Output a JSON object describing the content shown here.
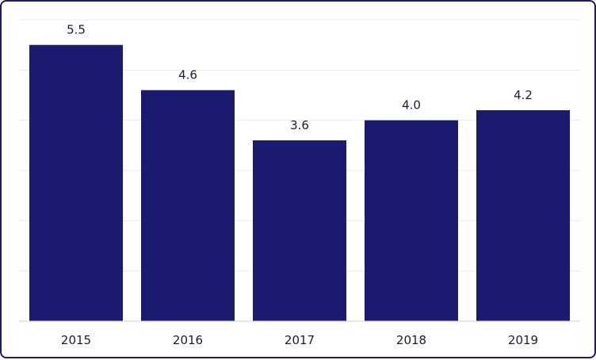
{
  "chart_data": {
    "type": "bar",
    "categories": [
      "2015",
      "2016",
      "2017",
      "2018",
      "2019"
    ],
    "values": [
      5.5,
      4.6,
      3.6,
      4.0,
      4.2
    ],
    "value_labels": [
      "5.5",
      "4.6",
      "3.6",
      "4.0",
      "4.2"
    ],
    "title": "",
    "xlabel": "",
    "ylabel": "",
    "ylim": [
      0,
      6
    ],
    "grid": true,
    "legend": "none",
    "bar_color": "#1a1a6e",
    "frame_color": "#1a1a6e"
  }
}
